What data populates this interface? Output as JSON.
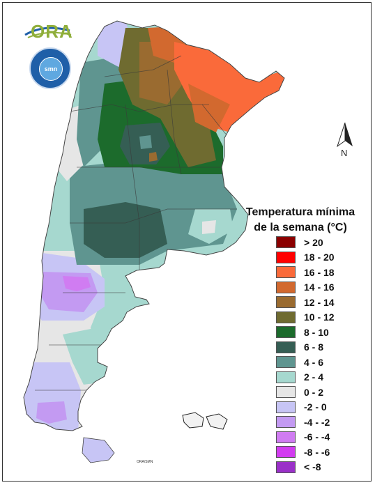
{
  "logos": {
    "ora_text": "ORA",
    "smn_text": "smn"
  },
  "north_label": "N",
  "legend": {
    "title_line1": "Temperatura mínima",
    "title_line2": "de la semana (°C)",
    "items": [
      {
        "label": "> 20",
        "color": "#8b0000"
      },
      {
        "label": "18 - 20",
        "color": "#ff0000"
      },
      {
        "label": "16 - 18",
        "color": "#fa6a3a"
      },
      {
        "label": "14 - 16",
        "color": "#d2692f"
      },
      {
        "label": "12 - 14",
        "color": "#9a6b30"
      },
      {
        "label": "10 - 12",
        "color": "#6f6b30"
      },
      {
        "label": "8 - 10",
        "color": "#1c6b2c"
      },
      {
        "label": "6 - 8",
        "color": "#355e54"
      },
      {
        "label": "4 - 6",
        "color": "#5f9590"
      },
      {
        "label": "2 - 4",
        "color": "#a6d8cf"
      },
      {
        "label": "0 - 2",
        "color": "#e6e6e6"
      },
      {
        "label": "-2 - 0",
        "color": "#c7c5f5"
      },
      {
        "label": "-4 - -2",
        "color": "#c39af2"
      },
      {
        "label": "-6 - -4",
        "color": "#d07cf2"
      },
      {
        "label": "-8 - -6",
        "color": "#d23cf0"
      },
      {
        "label": "< -8",
        "color": "#9a30c8"
      }
    ]
  },
  "credit": "ORA/SMN"
}
